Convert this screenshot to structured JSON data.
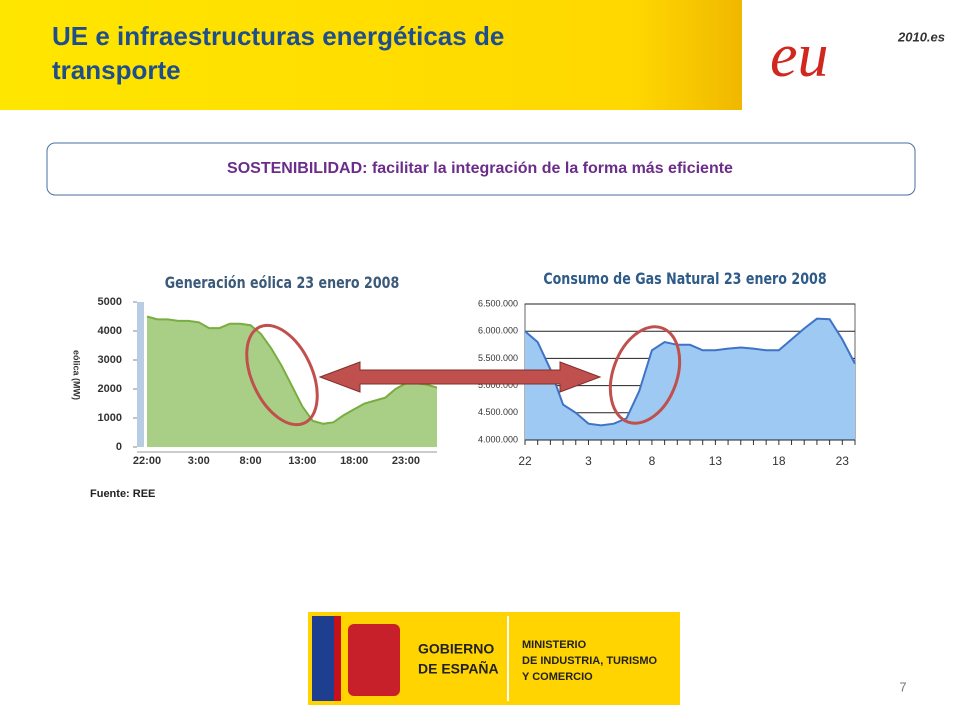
{
  "header": {
    "title_line1": "UE e infraestructuras energéticas de",
    "title_line2": "transporte"
  },
  "logo": {
    "mark": "eu",
    "site": "2010.es"
  },
  "banner": "SOSTENIBILIDAD: facilitar la integración de la forma más eficiente",
  "chart_data": [
    {
      "type": "area",
      "title": "Generación eólica 23 enero 2008",
      "y_label": "eólica (MW)",
      "categories": [
        "22:00",
        null,
        null,
        null,
        null,
        "3:00",
        null,
        null,
        null,
        null,
        "8:00",
        null,
        null,
        null,
        null,
        "13:00",
        null,
        null,
        null,
        null,
        "18:00",
        null,
        null,
        null,
        null,
        "23:00",
        null,
        null,
        null
      ],
      "values": [
        4500,
        4400,
        4400,
        4350,
        4350,
        4300,
        4100,
        4100,
        4250,
        4250,
        4200,
        3900,
        3400,
        2800,
        2100,
        1400,
        900,
        800,
        850,
        1100,
        1300,
        1500,
        1600,
        1700,
        2000,
        2200,
        2200,
        2150,
        2050
      ],
      "color": "#a9cf86",
      "line_color": "#79ad40",
      "ylim": [
        0,
        5000
      ],
      "yticks": [
        0,
        1000,
        2000,
        3000,
        4000,
        5000
      ]
    },
    {
      "type": "area",
      "title": "Consumo de Gas Natural 23 enero 2008",
      "categories": [
        "22",
        null,
        null,
        null,
        null,
        "3",
        null,
        null,
        null,
        null,
        "8",
        null,
        null,
        null,
        null,
        "13",
        null,
        null,
        null,
        null,
        "18",
        null,
        null,
        null,
        null,
        "23",
        null
      ],
      "values": [
        6000000,
        5800000,
        5300000,
        4650000,
        4500000,
        4300000,
        4270000,
        4300000,
        4400000,
        4900000,
        5650000,
        5800000,
        5750000,
        5750000,
        5650000,
        5650000,
        5680000,
        5700000,
        5680000,
        5650000,
        5650000,
        5850000,
        6050000,
        6230000,
        6220000,
        5850000,
        5400000
      ],
      "color": "#9dc9f2",
      "line_color": "#3f73c6",
      "grid": true,
      "ylim": [
        4000000,
        6500000
      ],
      "yticks": [
        {
          "value": 4000000,
          "label": "4.000.000"
        },
        {
          "value": 4500000,
          "label": "4.500.000"
        },
        {
          "value": 5000000,
          "label": "5.000.000"
        },
        {
          "value": 5500000,
          "label": "5.500.000"
        },
        {
          "value": 6000000,
          "label": "6.000.000"
        },
        {
          "value": 6500000,
          "label": "6.500.000"
        }
      ]
    }
  ],
  "source": "Fuente: REE",
  "footer": {
    "gov_line1": "GOBIERNO",
    "gov_line2": "DE ESPAÑA",
    "min_line1": "MINISTERIO",
    "min_line2": "DE INDUSTRIA, TURISMO",
    "min_line3": "Y COMERCIO"
  },
  "page_number": "7"
}
